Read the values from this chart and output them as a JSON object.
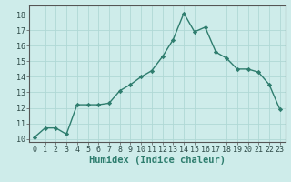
{
  "x": [
    0,
    1,
    2,
    3,
    4,
    5,
    6,
    7,
    8,
    9,
    10,
    11,
    12,
    13,
    14,
    15,
    16,
    17,
    18,
    19,
    20,
    21,
    22,
    23
  ],
  "y": [
    10.1,
    10.7,
    10.7,
    10.3,
    12.2,
    12.2,
    12.2,
    12.3,
    13.1,
    13.5,
    14.0,
    14.4,
    15.3,
    16.4,
    18.1,
    16.9,
    17.2,
    15.6,
    15.2,
    14.5,
    14.5,
    14.3,
    13.5,
    11.9
  ],
  "xlim": [
    -0.5,
    23.5
  ],
  "ylim": [
    9.8,
    18.6
  ],
  "yticks": [
    10,
    11,
    12,
    13,
    14,
    15,
    16,
    17,
    18
  ],
  "xticks": [
    0,
    1,
    2,
    3,
    4,
    5,
    6,
    7,
    8,
    9,
    10,
    11,
    12,
    13,
    14,
    15,
    16,
    17,
    18,
    19,
    20,
    21,
    22,
    23
  ],
  "xlabel": "Humidex (Indice chaleur)",
  "line_color": "#2e7d6e",
  "bg_color": "#ceecea",
  "grid_color": "#b0d8d5",
  "marker": "D",
  "markersize": 2.2,
  "linewidth": 1.0,
  "xlabel_fontsize": 7.5,
  "tick_fontsize": 6.0
}
